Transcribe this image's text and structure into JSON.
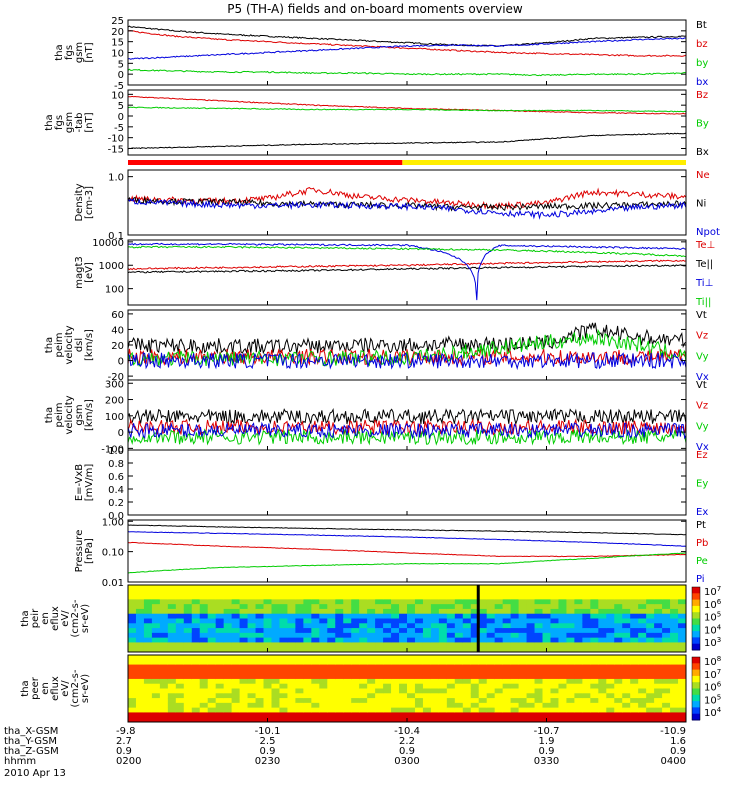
{
  "title": "P5 (TH-A) fields and on-board moments overview",
  "colors": {
    "black": "#000000",
    "red": "#dd0000",
    "green": "#00cc00",
    "blue": "#0000dd",
    "yellow": "#ffee00",
    "bar_red": "#ff0000"
  },
  "footer": {
    "rows": [
      {
        "label": "tha_X-GSM",
        "values": [
          "-9.8",
          "-10.1",
          "-10.4",
          "-10.7",
          "-10.9"
        ]
      },
      {
        "label": "tha_Y-GSM",
        "values": [
          "2.7",
          "2.5",
          "2.2",
          "1.9",
          "1.6"
        ]
      },
      {
        "label": "tha_Z-GSM",
        "values": [
          "0.9",
          "0.9",
          "0.9",
          "0.9",
          "0.9"
        ]
      },
      {
        "label": "hhmm",
        "values": [
          "0200",
          "0230",
          "0300",
          "0330",
          "0400"
        ]
      }
    ],
    "date": "2010 Apr 13"
  },
  "chart_data": [
    {
      "type": "line",
      "ylabel": [
        "tha",
        "fgs",
        "gsm",
        "[nT]"
      ],
      "yticks": [
        "25",
        "20",
        "15",
        "10",
        "5",
        "0",
        "-5"
      ],
      "ylim": [
        -5,
        25
      ],
      "series": [
        {
          "name": "Bt",
          "color": "black",
          "x": [
            0,
            10,
            20,
            30,
            40,
            50,
            60,
            70,
            80,
            90,
            100,
            110,
            120
          ],
          "y": [
            22,
            20,
            18.5,
            17.5,
            16.5,
            15.5,
            14.5,
            13.5,
            13,
            14.5,
            16.5,
            17,
            17.5
          ]
        },
        {
          "name": "bz",
          "color": "red",
          "x": [
            0,
            10,
            20,
            30,
            40,
            50,
            60,
            70,
            80,
            90,
            100,
            110,
            120
          ],
          "y": [
            20,
            17.5,
            16,
            15,
            14,
            13,
            12,
            11,
            10,
            9.5,
            9,
            8.5,
            8.5
          ]
        },
        {
          "name": "by",
          "color": "green",
          "x": [
            0,
            10,
            20,
            30,
            40,
            50,
            60,
            70,
            80,
            90,
            100,
            110,
            120
          ],
          "y": [
            2,
            1.5,
            1,
            1,
            0.5,
            0.5,
            0,
            0,
            0,
            -0.5,
            0,
            0,
            0.5
          ]
        },
        {
          "name": "bx",
          "color": "blue",
          "x": [
            0,
            10,
            20,
            30,
            40,
            50,
            60,
            70,
            80,
            90,
            100,
            110,
            120
          ],
          "y": [
            7,
            8,
            9,
            10,
            11,
            12,
            13,
            13.5,
            13,
            14,
            15,
            16,
            16.5
          ]
        }
      ]
    },
    {
      "type": "line",
      "ylabel": [
        "tha",
        "fgs",
        "gsm",
        "-tab",
        "[nT]"
      ],
      "yticks": [
        "10",
        "5",
        "0",
        "-5",
        "-10",
        "-15"
      ],
      "ylim": [
        -18,
        12
      ],
      "series": [
        {
          "name": "Bz",
          "color": "red",
          "x": [
            0,
            20,
            40,
            60,
            80,
            100,
            120
          ],
          "y": [
            9,
            7,
            5,
            3.5,
            2.5,
            1.5,
            1
          ]
        },
        {
          "name": "By",
          "color": "green",
          "x": [
            0,
            20,
            40,
            60,
            80,
            100,
            120
          ],
          "y": [
            4,
            3.5,
            3,
            3,
            2.5,
            2.5,
            2
          ]
        },
        {
          "name": "Bx",
          "color": "black",
          "x": [
            0,
            20,
            40,
            60,
            80,
            100,
            120
          ],
          "y": [
            -15,
            -14,
            -13,
            -12.5,
            -12,
            -9,
            -8
          ]
        }
      ]
    },
    {
      "type": "line",
      "log": true,
      "ylabel": [
        "Density",
        "[cm-3]"
      ],
      "yticks": [
        "1.0",
        "0.1"
      ],
      "ylim": [
        0.1,
        1.3
      ],
      "series": [
        {
          "name": "Ne",
          "color": "red",
          "x": [
            0,
            10,
            20,
            30,
            40,
            50,
            60,
            70,
            80,
            90,
            100,
            110,
            120
          ],
          "y": [
            0.42,
            0.4,
            0.38,
            0.42,
            0.6,
            0.45,
            0.4,
            0.35,
            0.32,
            0.35,
            0.55,
            0.5,
            0.45
          ]
        },
        {
          "name": "Ni",
          "color": "black",
          "x": [
            0,
            10,
            20,
            30,
            40,
            50,
            60,
            70,
            80,
            90,
            100,
            110,
            120
          ],
          "y": [
            0.4,
            0.38,
            0.37,
            0.35,
            0.34,
            0.33,
            0.32,
            0.3,
            0.3,
            0.31,
            0.32,
            0.33,
            0.35
          ]
        },
        {
          "name": "Npot",
          "color": "blue",
          "x": [
            0,
            10,
            20,
            30,
            40,
            50,
            60,
            70,
            80,
            90,
            100,
            110,
            120
          ],
          "y": [
            0.38,
            0.35,
            0.33,
            0.32,
            0.33,
            0.32,
            0.31,
            0.28,
            0.24,
            0.22,
            0.25,
            0.3,
            0.33
          ]
        }
      ]
    },
    {
      "type": "line",
      "log": true,
      "ylabel": [
        "magt3",
        "[eV]"
      ],
      "yticks": [
        "10000",
        "1000",
        "100"
      ],
      "ylim": [
        20,
        12000
      ],
      "series": [
        {
          "name": "Te⊥",
          "color": "red",
          "x": [
            0,
            20,
            40,
            60,
            80,
            100,
            120
          ],
          "y": [
            700,
            800,
            900,
            1000,
            1200,
            1400,
            1600
          ]
        },
        {
          "name": "Te||",
          "color": "black",
          "x": [
            0,
            20,
            40,
            60,
            80,
            100,
            120
          ],
          "y": [
            500,
            550,
            600,
            700,
            800,
            900,
            1000
          ]
        },
        {
          "name": "Ti⊥",
          "color": "blue",
          "x": [
            0,
            20,
            40,
            60,
            75,
            80,
            100,
            120
          ],
          "y": [
            8000,
            8000,
            7500,
            7200,
            30,
            7000,
            6000,
            5000
          ]
        },
        {
          "name": "Ti||",
          "color": "green",
          "x": [
            0,
            20,
            40,
            60,
            80,
            100,
            120
          ],
          "y": [
            6000,
            6000,
            5500,
            5000,
            4500,
            3500,
            2500
          ]
        }
      ]
    },
    {
      "type": "line",
      "ylabel": [
        "tha",
        "peim",
        "velocity",
        "dsl",
        "[km/s]"
      ],
      "yticks": [
        "60",
        "40",
        "20",
        "0",
        "-20"
      ],
      "ylim": [
        -25,
        65
      ],
      "series": [
        {
          "name": "Vt",
          "color": "black",
          "x": [
            0,
            30,
            60,
            90,
            100,
            110,
            120
          ],
          "y": [
            20,
            18,
            20,
            22,
            40,
            30,
            25
          ]
        },
        {
          "name": "Vz",
          "color": "red",
          "x": [
            0,
            60,
            120
          ],
          "y": [
            5,
            5,
            5
          ]
        },
        {
          "name": "Vy",
          "color": "green",
          "x": [
            0,
            60,
            100,
            110,
            120
          ],
          "y": [
            3,
            3,
            30,
            20,
            5
          ]
        },
        {
          "name": "Vx",
          "color": "blue",
          "x": [
            0,
            60,
            120
          ],
          "y": [
            0,
            0,
            0
          ]
        }
      ]
    },
    {
      "type": "line",
      "ylabel": [
        "tha",
        "peim",
        "velocity",
        "gsm",
        "[km/s]"
      ],
      "yticks": [
        "300",
        "200",
        "100",
        "0",
        "-100"
      ],
      "ylim": [
        -110,
        320
      ],
      "series": [
        {
          "name": "Vt",
          "color": "black",
          "x": [
            0,
            60,
            120
          ],
          "y": [
            95,
            95,
            95
          ]
        },
        {
          "name": "Vz",
          "color": "red",
          "x": [
            0,
            60,
            120
          ],
          "y": [
            30,
            30,
            30
          ]
        },
        {
          "name": "Vy",
          "color": "green",
          "x": [
            0,
            60,
            120
          ],
          "y": [
            -30,
            -30,
            -30
          ]
        },
        {
          "name": "Vx",
          "color": "blue",
          "x": [
            0,
            60,
            120
          ],
          "y": [
            10,
            10,
            10
          ]
        }
      ]
    },
    {
      "type": "line",
      "ylabel": [
        "E=-VxB",
        "[mV/m]"
      ],
      "yticks": [
        "1.0",
        "0.8",
        "0.6",
        "0.4",
        "0.2",
        "0.0"
      ],
      "ylim": [
        0,
        1
      ],
      "series": [
        {
          "name": "Ez",
          "color": "red",
          "x": [],
          "y": []
        },
        {
          "name": "Ey",
          "color": "green",
          "x": [],
          "y": []
        },
        {
          "name": "Ex",
          "color": "blue",
          "x": [],
          "y": []
        }
      ]
    },
    {
      "type": "line",
      "log": true,
      "ylabel": [
        "Pressure",
        "[nPa]"
      ],
      "yticks": [
        "1.00",
        "0.10",
        "0.01"
      ],
      "ylim": [
        0.01,
        1.1
      ],
      "series": [
        {
          "name": "Pt",
          "color": "black",
          "x": [
            0,
            20,
            40,
            60,
            80,
            100,
            120
          ],
          "y": [
            0.75,
            0.65,
            0.58,
            0.52,
            0.47,
            0.42,
            0.36
          ]
        },
        {
          "name": "Pb",
          "color": "red",
          "x": [
            0,
            20,
            40,
            60,
            80,
            100,
            120
          ],
          "y": [
            0.2,
            0.15,
            0.12,
            0.09,
            0.07,
            0.07,
            0.08
          ]
        },
        {
          "name": "Pe",
          "color": "green",
          "x": [
            0,
            20,
            40,
            60,
            80,
            100,
            120
          ],
          "y": [
            0.02,
            0.03,
            0.035,
            0.04,
            0.04,
            0.06,
            0.09
          ]
        },
        {
          "name": "Pi",
          "color": "blue",
          "x": [
            0,
            20,
            40,
            60,
            80,
            100,
            120
          ],
          "y": [
            0.45,
            0.4,
            0.35,
            0.3,
            0.25,
            0.2,
            0.15
          ]
        }
      ]
    },
    {
      "type": "heatmap",
      "ylabel": [
        "tha",
        "peir",
        "en",
        "eflux",
        "eV/",
        "(cm2-s-",
        "sr-eV)"
      ],
      "yticks": [
        "10000",
        "1000",
        "100",
        "10"
      ],
      "colorbar_ticks": [
        "10<sup>7</sup>",
        "10<sup>6</sup>",
        "10<sup>5</sup>",
        "10<sup>4</sup>",
        "10<sup>3</sup>"
      ],
      "colorbar_labels": [
        "10^7",
        "10^6",
        "10^5",
        "10^4",
        "10^3"
      ]
    },
    {
      "type": "heatmap",
      "ylabel": [
        "tha",
        "peer",
        "en",
        "eflux",
        "eV/",
        "(cm2-s-",
        "sr-eV)"
      ],
      "yticks": [
        "10000",
        "1000",
        "100",
        "10"
      ],
      "colorbar_labels": [
        "10^8",
        "10^7",
        "10^6",
        "10^5",
        "10^4"
      ]
    }
  ]
}
